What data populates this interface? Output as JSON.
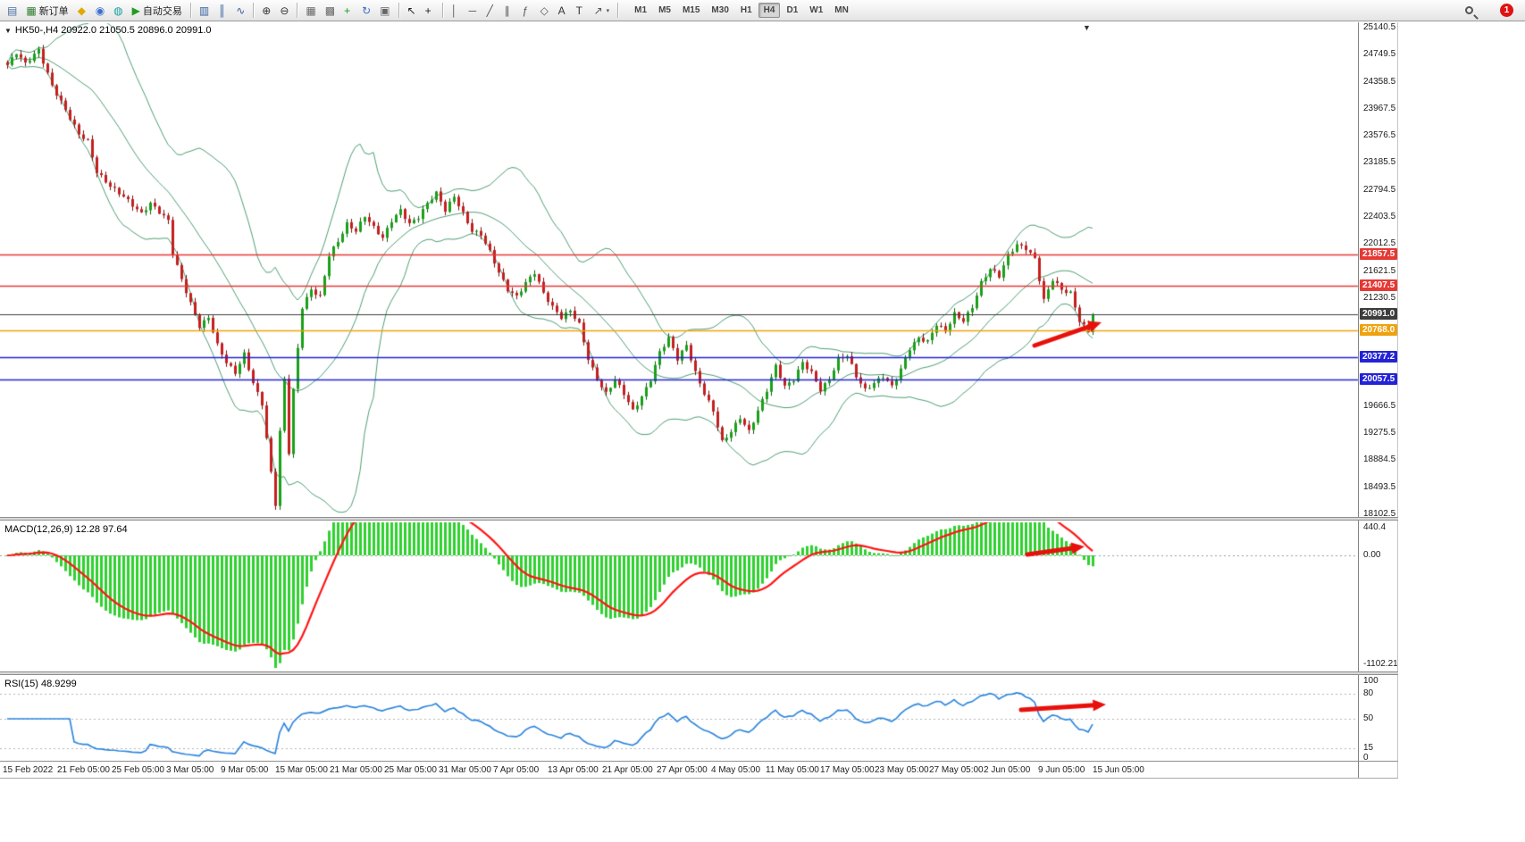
{
  "toolbar": {
    "notification_count": "1",
    "timeframes": [
      "M1",
      "M5",
      "M15",
      "M30",
      "H1",
      "H4",
      "D1",
      "W1",
      "MN"
    ],
    "active_timeframe": "H4",
    "items": [
      {
        "t": "btn",
        "name": "chart-window-button",
        "glyph": "▤",
        "gc": "#4a6fa5"
      },
      {
        "t": "btn",
        "name": "new-order-button",
        "glyph": "▦",
        "gc": "#2e7d32",
        "label": "新订单"
      },
      {
        "t": "btn",
        "name": "metaquotes-button",
        "glyph": "◆",
        "gc": "#e0a800"
      },
      {
        "t": "btn",
        "name": "profile-button",
        "glyph": "◉",
        "gc": "#3a6ecc"
      },
      {
        "t": "btn",
        "name": "community-button",
        "glyph": "◍",
        "gc": "#18a0a0"
      },
      {
        "t": "btn",
        "name": "auto-trading-button",
        "glyph": "▶",
        "gc": "#1f9d1f",
        "label": "自动交易"
      },
      {
        "t": "sep"
      },
      {
        "t": "btn",
        "name": "bars-chart-button",
        "glyph": "▥",
        "gc": "#355f9e"
      },
      {
        "t": "btn",
        "name": "candles-chart-button",
        "glyph": "║",
        "gc": "#355f9e"
      },
      {
        "t": "btn",
        "name": "line-chart-button",
        "glyph": "∿",
        "gc": "#355f9e"
      },
      {
        "t": "sep"
      },
      {
        "t": "btn",
        "name": "zoom-in-button",
        "glyph": "⊕",
        "gc": "#333333"
      },
      {
        "t": "btn",
        "name": "zoom-out-button",
        "glyph": "⊖",
        "gc": "#333333"
      },
      {
        "t": "sep"
      },
      {
        "t": "btn",
        "name": "tile-windows-button",
        "glyph": "▦",
        "gc": "#666666"
      },
      {
        "t": "btn",
        "name": "cascade-windows-button",
        "glyph": "▩",
        "gc": "#666666"
      },
      {
        "t": "btn",
        "name": "new-chart-button",
        "glyph": "+",
        "gc": "#1f9d1f"
      },
      {
        "t": "btn",
        "name": "cycle-symbols-button",
        "glyph": "↻",
        "gc": "#3a6ecc"
      },
      {
        "t": "btn",
        "name": "snapshot-button",
        "glyph": "▣",
        "gc": "#666666"
      },
      {
        "t": "sep"
      },
      {
        "t": "btn",
        "name": "cursor-button",
        "glyph": "↖",
        "gc": "#222222"
      },
      {
        "t": "btn",
        "name": "crosshair-button",
        "glyph": "+",
        "gc": "#222222"
      },
      {
        "t": "sep"
      },
      {
        "t": "btn",
        "name": "vertical-line-button",
        "glyph": "│",
        "gc": "#555555"
      },
      {
        "t": "btn",
        "name": "horizontal-line-button",
        "glyph": "─",
        "gc": "#555555"
      },
      {
        "t": "btn",
        "name": "trendline-button",
        "glyph": "╱",
        "gc": "#555555"
      },
      {
        "t": "btn",
        "name": "channel-button",
        "glyph": "∥",
        "gc": "#555555"
      },
      {
        "t": "btn",
        "name": "fibonacci-button",
        "glyph": "ƒ",
        "gc": "#555555"
      },
      {
        "t": "btn",
        "name": "shapes-button",
        "glyph": "◇",
        "gc": "#555555"
      },
      {
        "t": "btn",
        "name": "text-button",
        "glyph": "A",
        "gc": "#333333"
      },
      {
        "t": "btn",
        "name": "text-label-button",
        "glyph": "T",
        "gc": "#333333"
      },
      {
        "t": "btn",
        "name": "arrows-tool-button",
        "glyph": "↗",
        "gc": "#555555",
        "dd": true
      },
      {
        "t": "sep"
      }
    ]
  },
  "chart": {
    "collapse_glyph": "▼",
    "shift_marker_glyph": "▼",
    "symbol": "HK50-",
    "period": "H4",
    "open": "20922.0",
    "high": "21050.5",
    "low": "20896.0",
    "close": "20991.0",
    "info_line": "HK50-,H4  20922.0 21050.5 20896.0 20991.0"
  },
  "chart_data": {
    "type": "candlestick",
    "symbol": "HK50-",
    "timeframe": "H4",
    "ohlc_display": {
      "open": 20922.0,
      "high": 21050.5,
      "low": 20896.0,
      "close": 20991.0
    },
    "price_axis_range": [
      18102.5,
      25140.5
    ],
    "price_axis": [
      25140.5,
      24749.5,
      24358.5,
      23967.5,
      23576.5,
      23185.5,
      22794.5,
      22403.5,
      22012.5,
      21621.5,
      21230.5,
      19666.5,
      19275.5,
      18884.5,
      18493.5,
      18102.5
    ],
    "hlines": [
      {
        "price": 21857.5,
        "label": "21857.5",
        "color": "#e53935"
      },
      {
        "price": 21407.5,
        "label": "21407.5",
        "color": "#e53935"
      },
      {
        "price": 20991.0,
        "label": "20991.0",
        "color": "#3c3c3c"
      },
      {
        "price": 20768.0,
        "label": "20768.0",
        "color": "#efa20c"
      },
      {
        "price": 20377.2,
        "label": "20377.2",
        "color": "#2323d6"
      },
      {
        "price": 20057.5,
        "label": "20057.5",
        "color": "#2323d6"
      }
    ],
    "close_anchors": [
      [
        0,
        24600
      ],
      [
        2,
        24780
      ],
      [
        4,
        24620
      ],
      [
        7,
        24820
      ],
      [
        10,
        24300
      ],
      [
        13,
        23950
      ],
      [
        16,
        23600
      ],
      [
        18,
        23500
      ],
      [
        20,
        23050
      ],
      [
        23,
        22850
      ],
      [
        26,
        22700
      ],
      [
        30,
        22450
      ],
      [
        32,
        22600
      ],
      [
        36,
        22350
      ],
      [
        37,
        21880
      ],
      [
        39,
        21500
      ],
      [
        41,
        21150
      ],
      [
        43,
        20820
      ],
      [
        45,
        20950
      ],
      [
        47,
        20550
      ],
      [
        49,
        20300
      ],
      [
        51,
        20150
      ],
      [
        53,
        20420
      ],
      [
        55,
        20000
      ],
      [
        57,
        19700
      ],
      [
        59,
        18700
      ],
      [
        60,
        18250
      ],
      [
        61,
        19300
      ],
      [
        62,
        20050
      ],
      [
        63,
        19000
      ],
      [
        64,
        19900
      ],
      [
        66,
        21100
      ],
      [
        68,
        21350
      ],
      [
        70,
        21250
      ],
      [
        72,
        21850
      ],
      [
        74,
        22050
      ],
      [
        76,
        22300
      ],
      [
        78,
        22200
      ],
      [
        80,
        22420
      ],
      [
        82,
        22250
      ],
      [
        84,
        22100
      ],
      [
        86,
        22350
      ],
      [
        88,
        22500
      ],
      [
        90,
        22300
      ],
      [
        92,
        22400
      ],
      [
        94,
        22600
      ],
      [
        96,
        22750
      ],
      [
        98,
        22500
      ],
      [
        100,
        22700
      ],
      [
        102,
        22450
      ],
      [
        104,
        22200
      ],
      [
        106,
        22150
      ],
      [
        108,
        21900
      ],
      [
        110,
        21600
      ],
      [
        112,
        21350
      ],
      [
        114,
        21250
      ],
      [
        116,
        21450
      ],
      [
        118,
        21600
      ],
      [
        120,
        21300
      ],
      [
        122,
        21100
      ],
      [
        124,
        20950
      ],
      [
        126,
        21050
      ],
      [
        128,
        20850
      ],
      [
        130,
        20350
      ],
      [
        132,
        20050
      ],
      [
        134,
        19850
      ],
      [
        136,
        20050
      ],
      [
        138,
        19850
      ],
      [
        140,
        19600
      ],
      [
        142,
        19800
      ],
      [
        144,
        20050
      ],
      [
        146,
        20450
      ],
      [
        148,
        20650
      ],
      [
        150,
        20350
      ],
      [
        152,
        20550
      ],
      [
        154,
        20150
      ],
      [
        156,
        19850
      ],
      [
        158,
        19600
      ],
      [
        160,
        19150
      ],
      [
        162,
        19300
      ],
      [
        164,
        19500
      ],
      [
        166,
        19300
      ],
      [
        168,
        19600
      ],
      [
        170,
        19900
      ],
      [
        172,
        20250
      ],
      [
        174,
        19950
      ],
      [
        176,
        20050
      ],
      [
        178,
        20300
      ],
      [
        180,
        20150
      ],
      [
        182,
        19900
      ],
      [
        184,
        20050
      ],
      [
        186,
        20350
      ],
      [
        188,
        20400
      ],
      [
        190,
        20100
      ],
      [
        192,
        19900
      ],
      [
        194,
        20000
      ],
      [
        196,
        20100
      ],
      [
        198,
        19950
      ],
      [
        200,
        20200
      ],
      [
        202,
        20500
      ],
      [
        204,
        20650
      ],
      [
        206,
        20600
      ],
      [
        208,
        20850
      ],
      [
        210,
        20750
      ],
      [
        212,
        21000
      ],
      [
        214,
        20900
      ],
      [
        216,
        21100
      ],
      [
        218,
        21450
      ],
      [
        220,
        21650
      ],
      [
        222,
        21550
      ],
      [
        224,
        21850
      ],
      [
        226,
        22000
      ],
      [
        228,
        21950
      ],
      [
        230,
        21800
      ],
      [
        232,
        21200
      ],
      [
        234,
        21500
      ],
      [
        236,
        21350
      ],
      [
        238,
        21300
      ],
      [
        240,
        20900
      ],
      [
        242,
        20750
      ],
      [
        243,
        20991
      ]
    ],
    "bollinger": {
      "period": 20,
      "deviation": 2,
      "color": "#4d9e73"
    },
    "macd": {
      "display": "MACD(12,26,9) 12.28 97.64",
      "params": "12,26,9",
      "value_main": "12.28",
      "value_signal": "97.64",
      "axis": [
        "440.4",
        "0.00",
        "-1102.21"
      ],
      "histogram_color": "#2fd12f",
      "signal_color": "#ff1414"
    },
    "rsi": {
      "display": "RSI(15) 48.9299",
      "period": "15",
      "value": "48.9299",
      "axis": [
        100,
        80,
        50,
        15,
        0
      ],
      "line_color": "#2e86de"
    },
    "time_axis": [
      "15 Feb 2022",
      "21 Feb 05:00",
      "25 Feb 05:00",
      "3 Mar 05:00",
      "9 Mar 05:00",
      "15 Mar 05:00",
      "21 Mar 05:00",
      "25 Mar 05:00",
      "31 Mar 05:00",
      "7 Apr 05:00",
      "13 Apr 05:00",
      "21 Apr 05:00",
      "27 Apr 05:00",
      "4 May 05:00",
      "11 May 05:00",
      "17 May 05:00",
      "23 May 05:00",
      "27 May 05:00",
      "2 Jun 05:00",
      "9 Jun 05:00",
      "15 Jun 05:00"
    ],
    "annotations": [
      {
        "type": "arrow",
        "panel": "main",
        "color": "#e8100c"
      },
      {
        "type": "arrow",
        "panel": "macd",
        "color": "#e8100c"
      },
      {
        "type": "arrow",
        "panel": "rsi",
        "color": "#e8100c"
      }
    ]
  }
}
